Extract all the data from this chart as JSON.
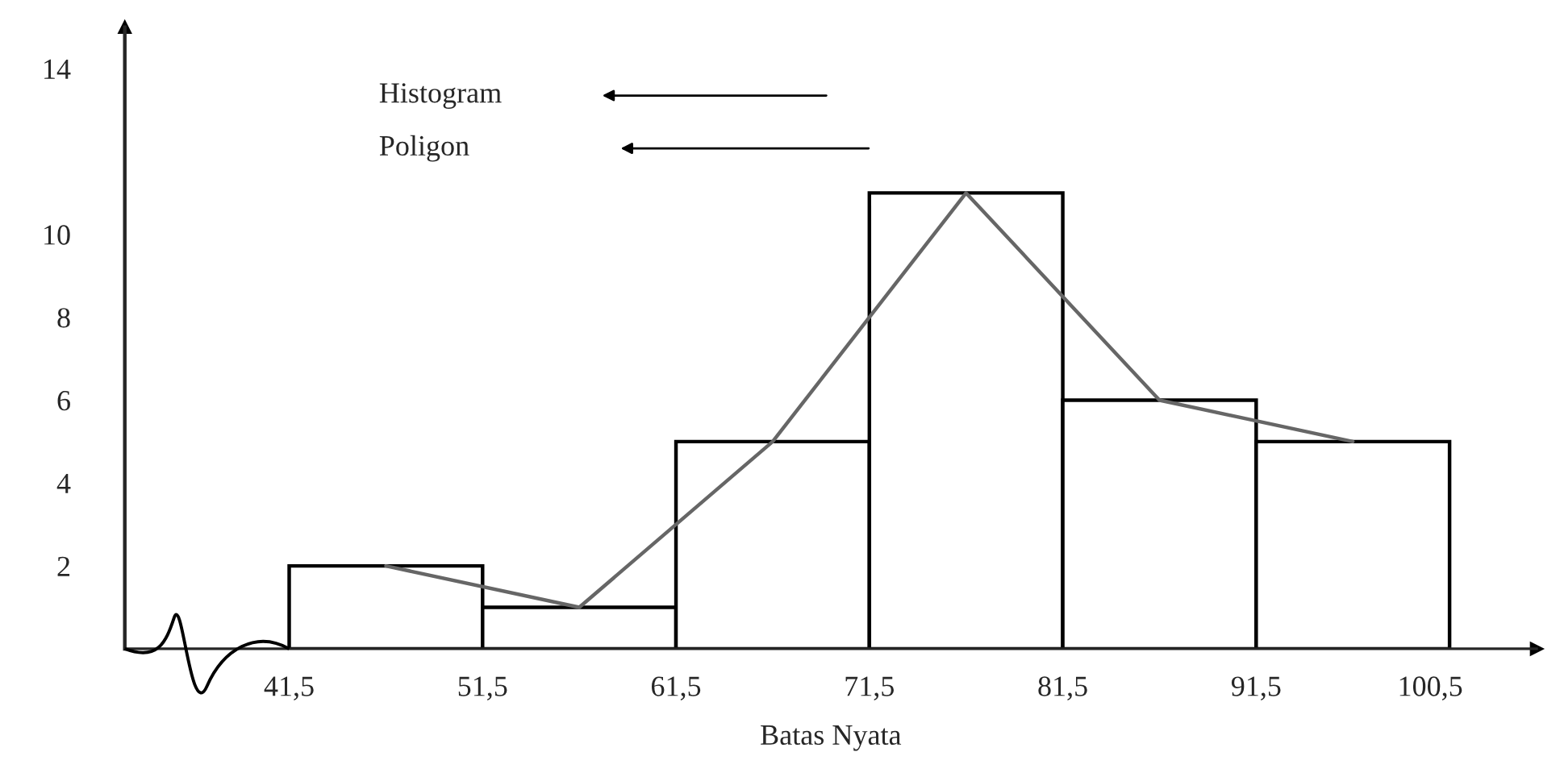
{
  "chart_data": {
    "type": "histogram",
    "xlabel": "Batas Nyata",
    "bins": [
      41.5,
      51.5,
      61.5,
      71.5,
      81.5,
      91.5,
      101.5
    ],
    "values": [
      2,
      1,
      5,
      11,
      6,
      5
    ],
    "color": "#ffffff",
    "series": [
      {
        "type": "line",
        "x": [
          46.5,
          56.5,
          66.5,
          76.5,
          86.5,
          96.5
        ],
        "values": [
          2,
          1,
          5,
          11,
          6,
          5
        ],
        "color": "#666666"
      }
    ],
    "xlim": [
      33,
      106
    ],
    "xticks": [
      {
        "value": 41.5,
        "label": "41,5"
      },
      {
        "value": 51.5,
        "label": "51,5"
      },
      {
        "value": 61.5,
        "label": "61,5"
      },
      {
        "value": 71.5,
        "label": "71,5"
      },
      {
        "value": 81.5,
        "label": "81,5"
      },
      {
        "value": 91.5,
        "label": "91,5"
      },
      {
        "value": 100.5,
        "label": "100,5"
      }
    ],
    "ylim": [
      0,
      15
    ],
    "yticks": [
      2,
      4,
      6,
      8,
      10,
      14
    ],
    "annotations": [
      "Histogram",
      "Poligon"
    ]
  }
}
